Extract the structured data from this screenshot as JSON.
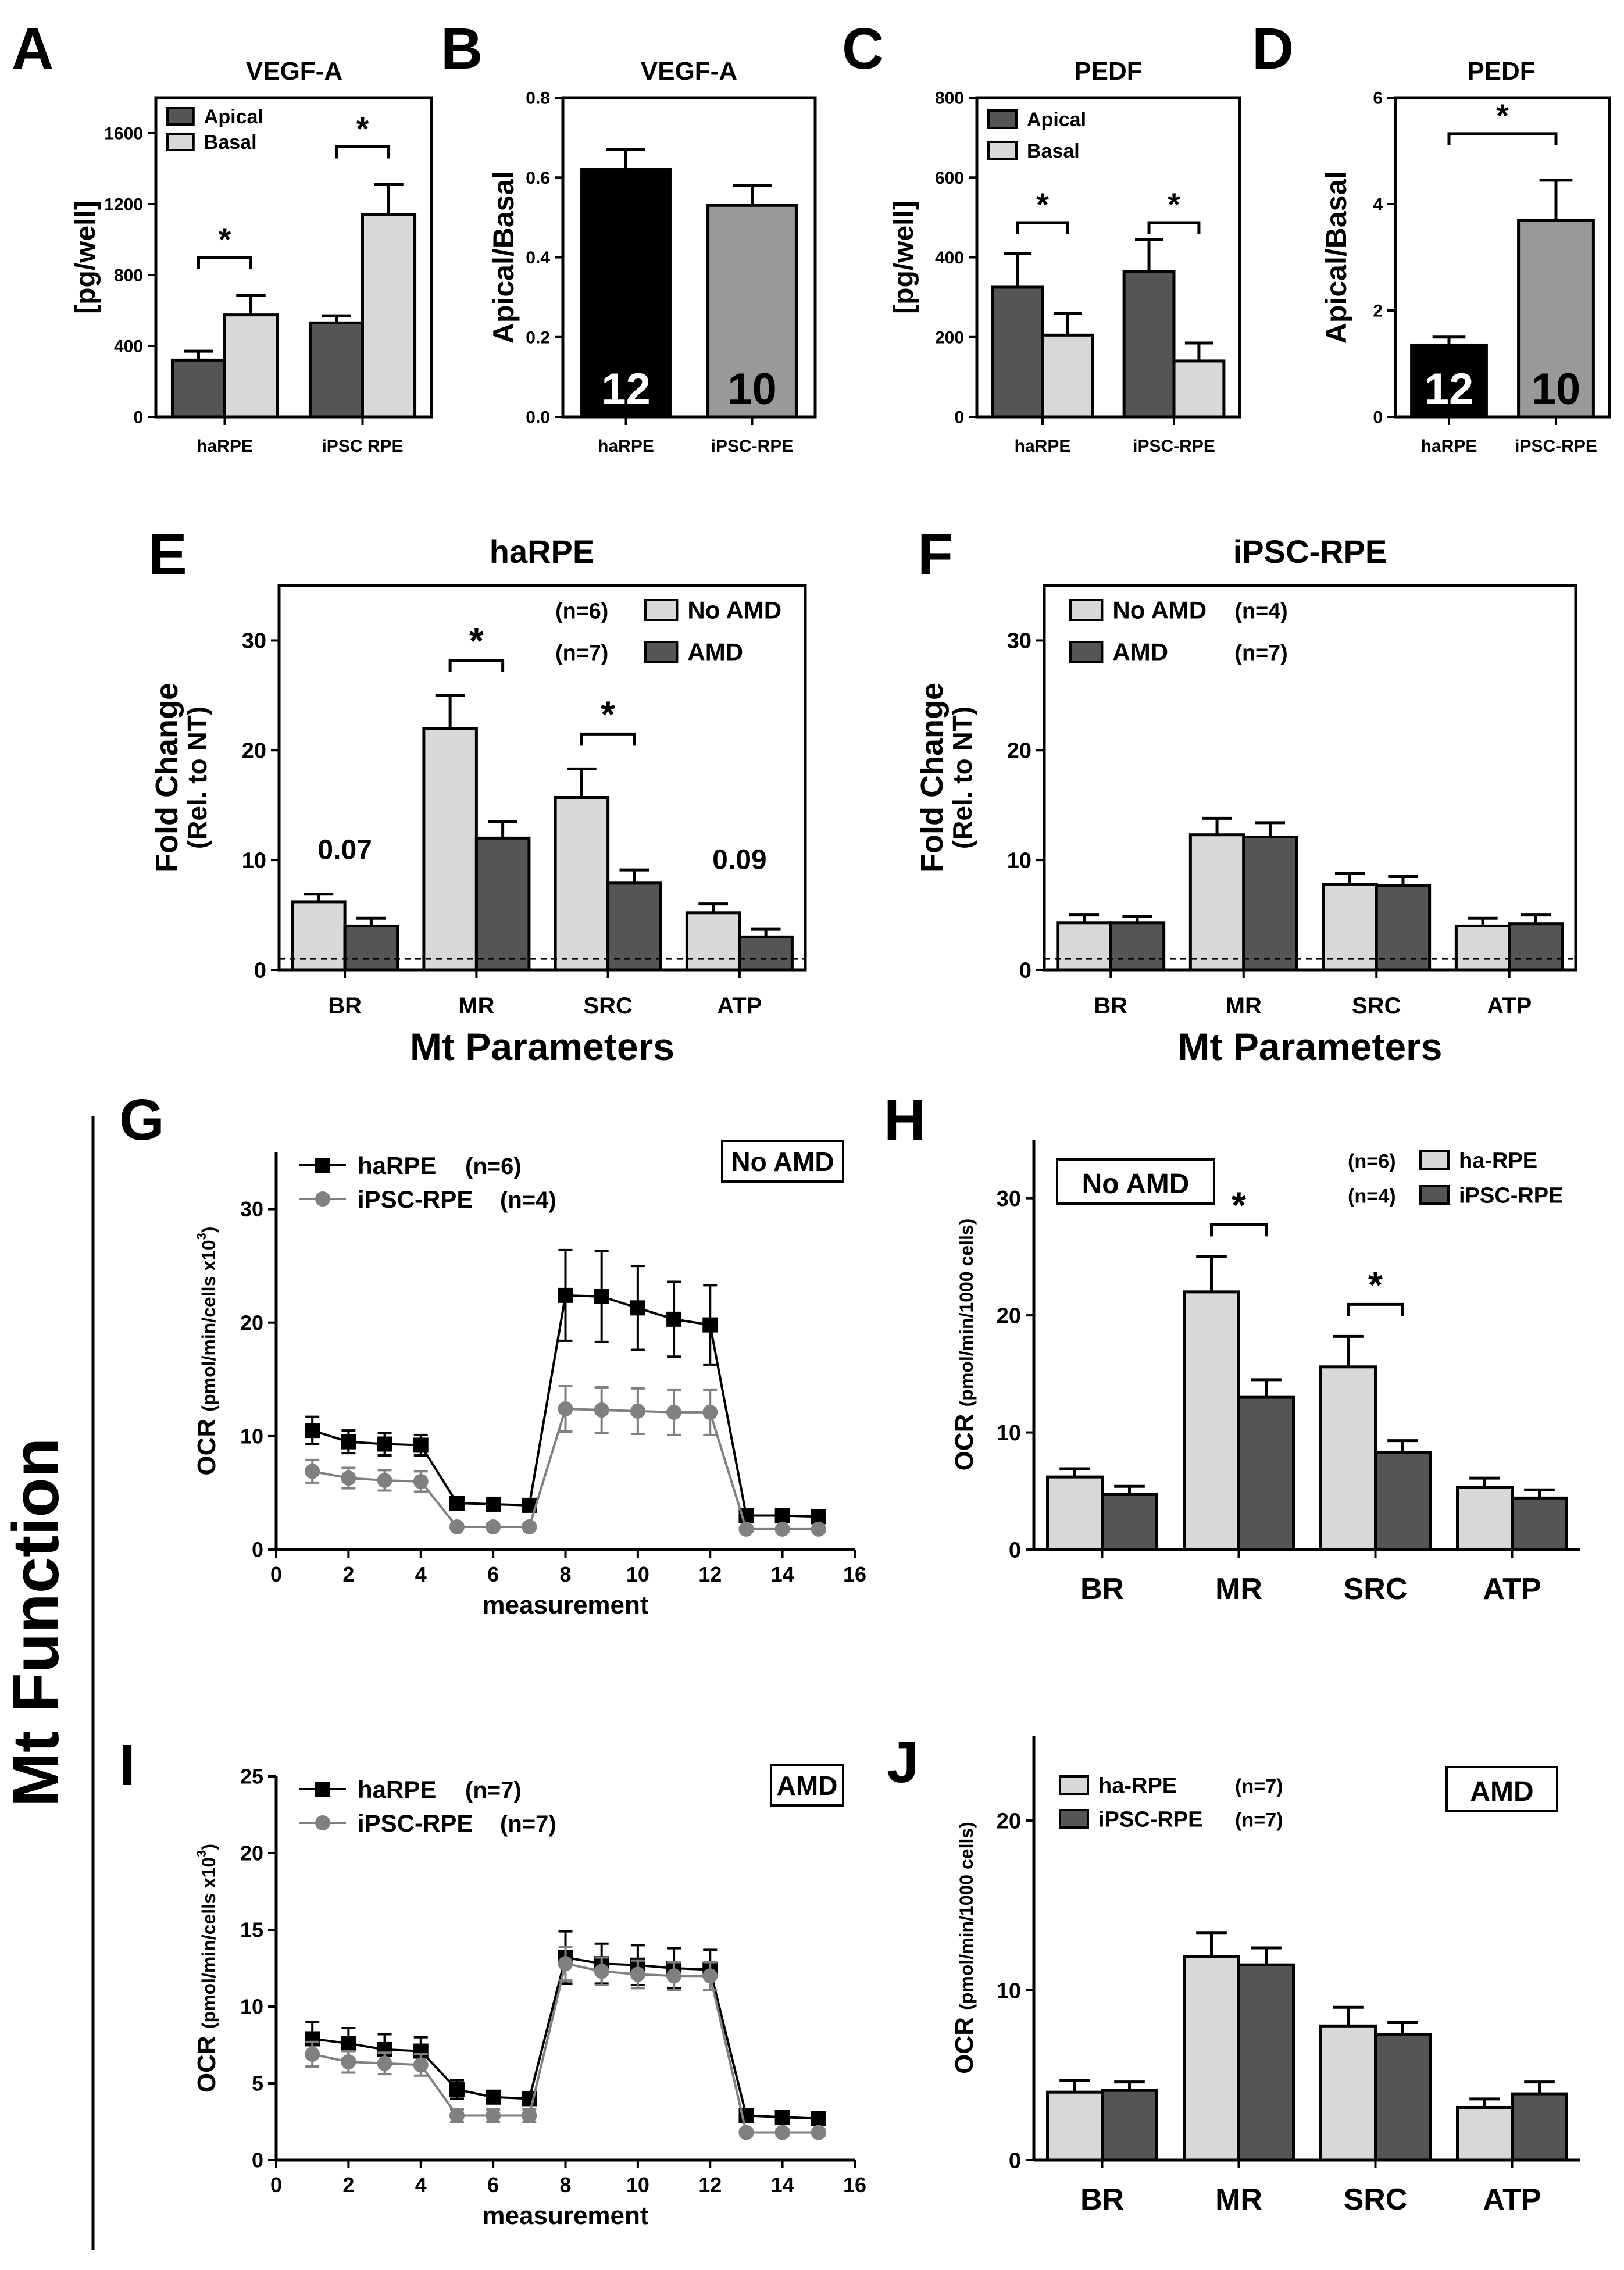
{
  "figure": {
    "side_label": "Mt Function",
    "colors": {
      "dark": "#555555",
      "light": "#d8d8d8",
      "black": "#000000",
      "midgray": "#999999",
      "line_dark": "#000000",
      "line_gray": "#808080"
    }
  },
  "chart_data": [
    {
      "id": "A",
      "panel_letter": "A",
      "type": "bar",
      "title": "VEGF-A",
      "ylabel": "[pg/well]",
      "xlabel": "",
      "categories": [
        "haRPE",
        "iPSC RPE"
      ],
      "ylim": [
        0,
        1800
      ],
      "yticks": [
        0,
        400,
        800,
        1200,
        1600
      ],
      "series": [
        {
          "name": "Apical",
          "color": "#555555",
          "values": [
            320,
            530
          ],
          "errors": [
            50,
            40
          ]
        },
        {
          "name": "Basal",
          "color": "#d8d8d8",
          "values": [
            575,
            1140
          ],
          "errors": [
            110,
            170
          ]
        }
      ],
      "legend": "top-left",
      "significance": [
        {
          "category": 0,
          "label": "*"
        },
        {
          "category": 1,
          "label": "*"
        }
      ]
    },
    {
      "id": "B",
      "panel_letter": "B",
      "type": "bar",
      "title": "VEGF-A",
      "ylabel": "Apical/Basal",
      "xlabel": "",
      "categories": [
        "haRPE",
        "iPSC-RPE"
      ],
      "ylim": [
        0,
        0.8
      ],
      "yticks": [
        0.0,
        0.2,
        0.4,
        0.6,
        0.8
      ],
      "values": [
        0.62,
        0.53
      ],
      "errors": [
        0.05,
        0.05
      ],
      "colors": [
        "#000000",
        "#999999"
      ],
      "n_labels": [
        "12",
        "10"
      ]
    },
    {
      "id": "C",
      "panel_letter": "C",
      "type": "bar",
      "title": "PEDF",
      "ylabel": "[pg/well]",
      "xlabel": "",
      "categories": [
        "haRPE",
        "iPSC-RPE"
      ],
      "ylim": [
        0,
        800
      ],
      "yticks": [
        0,
        200,
        400,
        600,
        800
      ],
      "series": [
        {
          "name": "Apical",
          "color": "#555555",
          "values": [
            325,
            365
          ],
          "errors": [
            85,
            80
          ]
        },
        {
          "name": "Basal",
          "color": "#d8d8d8",
          "values": [
            205,
            140
          ],
          "errors": [
            55,
            45
          ]
        }
      ],
      "legend": "top-left",
      "significance": [
        {
          "category": 0,
          "label": "*"
        },
        {
          "category": 1,
          "label": "*"
        }
      ]
    },
    {
      "id": "D",
      "panel_letter": "D",
      "type": "bar",
      "title": "PEDF",
      "ylabel": "Apical/Basal",
      "xlabel": "",
      "categories": [
        "haRPE",
        "iPSC-RPE"
      ],
      "ylim": [
        0,
        6
      ],
      "yticks": [
        0,
        2,
        4,
        6
      ],
      "values": [
        1.35,
        3.7
      ],
      "errors": [
        0.15,
        0.75
      ],
      "colors": [
        "#000000",
        "#999999"
      ],
      "n_labels": [
        "12",
        "10"
      ],
      "significance_pairs": [
        {
          "label": "*"
        }
      ]
    },
    {
      "id": "E",
      "panel_letter": "E",
      "type": "bar",
      "title": "haRPE",
      "ylabel": "Fold Change",
      "ylabel2": "(Rel. to NT)",
      "xlabel": "Mt Parameters",
      "categories": [
        "BR",
        "MR",
        "SRC",
        "ATP"
      ],
      "ylim": [
        0,
        35
      ],
      "yticks": [
        0,
        10,
        20,
        30
      ],
      "series": [
        {
          "name": "No AMD",
          "n": "(n=6)",
          "color": "#d8d8d8",
          "values": [
            6.2,
            22.0,
            15.7,
            5.2
          ],
          "errors": [
            0.7,
            3.0,
            2.6,
            0.8
          ]
        },
        {
          "name": "AMD",
          "n": "(n=7)",
          "color": "#555555",
          "values": [
            4.0,
            12.0,
            7.9,
            3.0
          ],
          "errors": [
            0.7,
            1.5,
            1.2,
            0.7
          ]
        }
      ],
      "legend": "top-right",
      "legend_n_side": "left",
      "reference_line": 1,
      "significance": [
        {
          "category": 1,
          "label": "*"
        },
        {
          "category": 2,
          "label": "*"
        }
      ],
      "pvalues": [
        {
          "category": 0,
          "label": "0.07"
        },
        {
          "category": 3,
          "label": "0.09"
        }
      ]
    },
    {
      "id": "F",
      "panel_letter": "F",
      "type": "bar",
      "title": "iPSC-RPE",
      "ylabel": "Fold Change",
      "ylabel2": "(Rel. to NT)",
      "xlabel": "Mt Parameters",
      "categories": [
        "BR",
        "MR",
        "SRC",
        "ATP"
      ],
      "ylim": [
        0,
        35
      ],
      "yticks": [
        0,
        10,
        20,
        30
      ],
      "series": [
        {
          "name": "No AMD",
          "n": "(n=4)",
          "color": "#d8d8d8",
          "values": [
            4.3,
            12.3,
            7.8,
            4.0
          ],
          "errors": [
            0.7,
            1.5,
            1.0,
            0.7
          ]
        },
        {
          "name": "AMD",
          "n": "(n=7)",
          "color": "#555555",
          "values": [
            4.3,
            12.1,
            7.7,
            4.2
          ],
          "errors": [
            0.6,
            1.3,
            0.8,
            0.8
          ]
        }
      ],
      "legend": "top-left",
      "legend_n_side": "right",
      "reference_line": 1
    },
    {
      "id": "G",
      "panel_letter": "G",
      "type": "line",
      "title": "",
      "ylabel": "OCR",
      "ylabel_small": "(pmol/min/cells x10",
      "ylabel_sup": "3",
      "ylabel_end": ")",
      "xlabel": "measurement",
      "xlim": [
        0,
        16
      ],
      "xticks": [
        0,
        2,
        4,
        6,
        8,
        10,
        12,
        14,
        16
      ],
      "ylim": [
        0,
        35
      ],
      "yticks": [
        0,
        10,
        20,
        30
      ],
      "box_label": "No AMD",
      "x": [
        1,
        2,
        3,
        4,
        5,
        6,
        7,
        8,
        9,
        10,
        11,
        12,
        13,
        14,
        15
      ],
      "series": [
        {
          "name": "haRPE",
          "n": "(n=6)",
          "marker": "square",
          "color": "#000000",
          "values": [
            10.5,
            9.5,
            9.3,
            9.2,
            4.1,
            4.0,
            3.9,
            22.4,
            22.3,
            21.3,
            20.3,
            19.8,
            3.0,
            3.0,
            2.9
          ],
          "errors": [
            1.2,
            1.0,
            1.0,
            0.9,
            0.3,
            0.3,
            0.3,
            4.0,
            4.0,
            3.7,
            3.3,
            3.5,
            0.3,
            0.3,
            0.3
          ]
        },
        {
          "name": "iPSC-RPE",
          "n": "(n=4)",
          "marker": "circle",
          "color": "#808080",
          "values": [
            6.9,
            6.3,
            6.1,
            6.0,
            2.0,
            2.0,
            2.0,
            12.4,
            12.3,
            12.2,
            12.1,
            12.1,
            1.8,
            1.8,
            1.8
          ],
          "errors": [
            1.0,
            0.9,
            0.9,
            0.9,
            0.2,
            0.2,
            0.2,
            2.0,
            2.0,
            2.0,
            2.0,
            2.0,
            0.2,
            0.2,
            0.2
          ]
        }
      ],
      "legend": "top-left"
    },
    {
      "id": "H",
      "panel_letter": "H",
      "type": "bar",
      "title": "",
      "ylabel": "OCR",
      "ylabel_small": "(pmol/min/1000 cells)",
      "xlabel": "",
      "categories": [
        "BR",
        "MR",
        "SRC",
        "ATP"
      ],
      "ylim": [
        0,
        35
      ],
      "yticks": [
        0,
        10,
        20,
        30
      ],
      "box_label": "No AMD",
      "series": [
        {
          "name": "ha-RPE",
          "n": "(n=6)",
          "color": "#d8d8d8",
          "values": [
            6.2,
            22.0,
            15.6,
            5.3
          ],
          "errors": [
            0.7,
            3.0,
            2.6,
            0.8
          ]
        },
        {
          "name": "iPSC-RPE",
          "n": "(n=4)",
          "color": "#555555",
          "values": [
            4.7,
            13.0,
            8.3,
            4.4
          ],
          "errors": [
            0.7,
            1.5,
            1.0,
            0.7
          ]
        }
      ],
      "legend": "top-right",
      "legend_n_side": "left",
      "significance": [
        {
          "category": 1,
          "label": "*"
        },
        {
          "category": 2,
          "label": "*"
        }
      ]
    },
    {
      "id": "I",
      "panel_letter": "I",
      "type": "line",
      "title": "",
      "ylabel": "OCR",
      "ylabel_small": "(pmol/min/cells x10",
      "ylabel_sup": "3",
      "ylabel_end": ")",
      "xlabel": "measurement",
      "xlim": [
        0,
        16
      ],
      "xticks": [
        0,
        2,
        4,
        6,
        8,
        10,
        12,
        14,
        16
      ],
      "ylim": [
        0,
        25
      ],
      "yticks": [
        0,
        5,
        10,
        15,
        20,
        25
      ],
      "box_label": "AMD",
      "x": [
        1,
        2,
        3,
        4,
        5,
        6,
        7,
        8,
        9,
        10,
        11,
        12,
        13,
        14,
        15
      ],
      "series": [
        {
          "name": "haRPE",
          "n": "(n=7)",
          "marker": "square",
          "color": "#000000",
          "values": [
            7.9,
            7.6,
            7.2,
            7.1,
            4.6,
            4.1,
            4.0,
            13.2,
            12.8,
            12.7,
            12.5,
            12.4,
            2.9,
            2.8,
            2.7
          ],
          "errors": [
            1.1,
            1.0,
            1.0,
            0.9,
            0.6,
            0.4,
            0.4,
            1.7,
            1.3,
            1.3,
            1.3,
            1.3,
            0.3,
            0.3,
            0.3
          ]
        },
        {
          "name": "iPSC-RPE",
          "n": "(n=7)",
          "marker": "circle",
          "color": "#808080",
          "values": [
            6.9,
            6.4,
            6.3,
            6.2,
            2.9,
            2.9,
            2.9,
            12.8,
            12.3,
            12.1,
            12.0,
            12.0,
            1.8,
            1.8,
            1.8
          ],
          "errors": [
            0.8,
            0.7,
            0.7,
            0.7,
            0.4,
            0.4,
            0.4,
            1.1,
            0.9,
            0.9,
            0.9,
            0.9,
            0.2,
            0.2,
            0.2
          ]
        }
      ],
      "legend": "top-left"
    },
    {
      "id": "J",
      "panel_letter": "J",
      "type": "bar",
      "title": "",
      "ylabel": "OCR",
      "ylabel_small": "(pmol/min/1000 cells)",
      "xlabel": "",
      "categories": [
        "BR",
        "MR",
        "SRC",
        "ATP"
      ],
      "ylim": [
        0,
        25
      ],
      "yticks": [
        0,
        10,
        20
      ],
      "box_label": "AMD",
      "series": [
        {
          "name": "ha-RPE",
          "n": "(n=7)",
          "color": "#d8d8d8",
          "values": [
            4.0,
            12.0,
            7.9,
            3.1
          ],
          "errors": [
            0.7,
            1.4,
            1.1,
            0.5
          ]
        },
        {
          "name": "iPSC-RPE",
          "n": "(n=7)",
          "color": "#555555",
          "values": [
            4.1,
            11.5,
            7.4,
            3.9
          ],
          "errors": [
            0.5,
            1.0,
            0.7,
            0.7
          ]
        }
      ],
      "legend": "top-left",
      "legend_n_side": "right"
    }
  ]
}
